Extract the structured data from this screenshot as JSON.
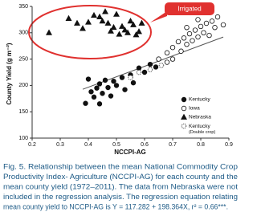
{
  "chart_data": {
    "type": "scatter",
    "x_label": "NCCPI-AG",
    "y_label": "County Yield (g m⁻²)",
    "xlim": [
      0.2,
      0.9
    ],
    "xticks": [
      0.2,
      0.3,
      0.4,
      0.5,
      0.6,
      0.7,
      0.8,
      0.9
    ],
    "ylim": [
      100,
      350
    ],
    "yticks": [
      100,
      150,
      200,
      250,
      300,
      350
    ],
    "annotation": "Irrigated",
    "series": [
      {
        "name": "Kentucky",
        "marker": "circle",
        "filled": true,
        "color": "#111111",
        "x": [
          0.4,
          0.41,
          0.42,
          0.43,
          0.44,
          0.45,
          0.46,
          0.47,
          0.48,
          0.49,
          0.5,
          0.52,
          0.53,
          0.55,
          0.56,
          0.58,
          0.6,
          0.62,
          0.64,
          0.39,
          0.44
        ],
        "values": [
          212,
          188,
          178,
          195,
          203,
          185,
          210,
          196,
          180,
          208,
          200,
          215,
          192,
          220,
          205,
          233,
          225,
          240,
          235,
          166,
          165
        ]
      },
      {
        "name": "Iowa",
        "marker": "circle",
        "filled": false,
        "color": "#111111",
        "x": [
          0.65,
          0.68,
          0.7,
          0.72,
          0.73,
          0.74,
          0.75,
          0.76,
          0.77,
          0.78,
          0.79,
          0.8,
          0.81,
          0.82,
          0.83,
          0.84,
          0.85,
          0.86,
          0.88,
          0.79,
          0.75,
          0.7,
          0.68
        ],
        "values": [
          250,
          262,
          272,
          283,
          265,
          290,
          278,
          298,
          285,
          305,
          292,
          312,
          300,
          318,
          295,
          322,
          310,
          330,
          315,
          325,
          310,
          250,
          244
        ]
      },
      {
        "name": "Nebraska",
        "marker": "triangle",
        "filled": true,
        "color": "#111111",
        "x": [
          0.26,
          0.33,
          0.36,
          0.38,
          0.4,
          0.42,
          0.44,
          0.45,
          0.46,
          0.47,
          0.48,
          0.49,
          0.5,
          0.51,
          0.52,
          0.53,
          0.54,
          0.55,
          0.56,
          0.57,
          0.58,
          0.59
        ],
        "values": [
          300,
          327,
          318,
          308,
          320,
          333,
          330,
          322,
          340,
          318,
          303,
          310,
          335,
          297,
          312,
          305,
          300,
          322,
          315,
          296,
          302,
          318
        ]
      },
      {
        "name": "Kentucky (Double crop)",
        "marker": "circle",
        "filled": false,
        "dotted": true,
        "color": "#111111",
        "x": [
          0.55,
          0.58,
          0.62,
          0.66
        ],
        "values": [
          215,
          225,
          230,
          238
        ]
      }
    ],
    "regression_line": {
      "x": [
        0.38,
        0.88
      ],
      "values": [
        192.66,
        291.84
      ],
      "color": "#555555"
    },
    "caption": [
      "Fig. 5. Relationship between the mean National Commodity Crop",
      "Productivity Index- Agriculture (NCCPI-AG) for each county and the",
      "mean county yield (1972–2011). The data from Nebraska were not",
      "included in the regression analysis. The regression equation relating",
      "mean county yield to NCCPI-AG is Y = 117.282 + 198.364X, r² = 0.66***."
    ]
  }
}
